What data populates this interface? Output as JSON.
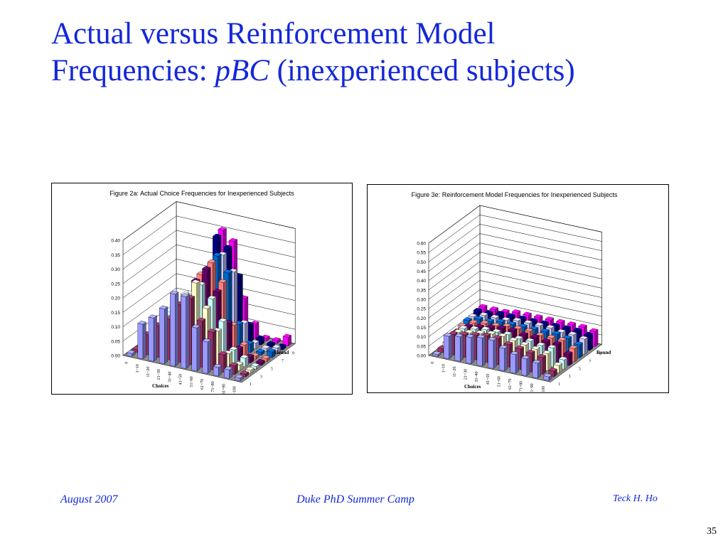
{
  "slide": {
    "title_line1": "Actual versus Reinforcement Model",
    "title_line2_pre": "Frequencies: ",
    "title_line2_italic": "pBC",
    "title_line2_post": " (inexperienced subjects)"
  },
  "footer": {
    "date": "August 2007",
    "center": "Duke PhD Summer Camp",
    "author": "Teck H. Ho",
    "page": "35"
  },
  "colors": {
    "title": "#1428d8",
    "series": [
      "#9999ff",
      "#993366",
      "#ffffcc",
      "#ccffff",
      "#660066",
      "#ff8080",
      "#0066cc",
      "#ccccff",
      "#000080",
      "#ff00ff"
    ]
  },
  "chart_data": [
    {
      "type": "bar",
      "style": "3d-column",
      "title": "Figure 2a: Actual Choice Frequencies for Inexperienced Subjects",
      "xlabel": "Choices",
      "zlabel": "Round",
      "categories": [
        "0",
        "1~10",
        "11~20",
        "21~30",
        "31~40",
        "41~50",
        "51~60",
        "61~70",
        "71~80",
        "81~90",
        "91~100"
      ],
      "rounds": [
        "1",
        "2",
        "3",
        "4",
        "5",
        "6",
        "7",
        "8",
        "9",
        "10"
      ],
      "round_tick_labels": [
        "1",
        "3",
        "5",
        "7",
        "9"
      ],
      "ylim": [
        0,
        0.4
      ],
      "yticks": [
        "0.00",
        "0.05",
        "0.10",
        "0.15",
        "0.20",
        "0.25",
        "0.30",
        "0.35",
        "0.40"
      ],
      "values": [
        [
          0.01,
          0.12,
          0.15,
          0.19,
          0.25,
          0.25,
          0.15,
          0.11,
          0.03,
          0.03,
          0.01
        ],
        [
          0.01,
          0.07,
          0.11,
          0.14,
          0.2,
          0.23,
          0.16,
          0.13,
          0.06,
          0.03,
          0.01
        ],
        [
          0.01,
          0.05,
          0.09,
          0.16,
          0.22,
          0.27,
          0.19,
          0.12,
          0.05,
          0.02,
          0.01
        ],
        [
          0.0,
          0.05,
          0.12,
          0.15,
          0.21,
          0.25,
          0.21,
          0.14,
          0.05,
          0.03,
          0.01
        ],
        [
          0.0,
          0.04,
          0.09,
          0.13,
          0.24,
          0.29,
          0.22,
          0.12,
          0.04,
          0.02,
          0.01
        ],
        [
          0.0,
          0.03,
          0.07,
          0.15,
          0.25,
          0.3,
          0.24,
          0.1,
          0.04,
          0.01,
          0.01
        ],
        [
          0.0,
          0.02,
          0.06,
          0.13,
          0.24,
          0.31,
          0.26,
          0.09,
          0.03,
          0.01,
          0.02
        ],
        [
          0.0,
          0.02,
          0.05,
          0.12,
          0.26,
          0.3,
          0.25,
          0.08,
          0.02,
          0.01,
          0.02
        ],
        [
          0.0,
          0.01,
          0.04,
          0.1,
          0.34,
          0.31,
          0.22,
          0.06,
          0.02,
          0.01,
          0.01
        ],
        [
          0.0,
          0.01,
          0.02,
          0.09,
          0.35,
          0.32,
          0.13,
          0.05,
          0.01,
          0.01,
          0.03
        ]
      ]
    },
    {
      "type": "bar",
      "style": "3d-column",
      "title": "Figure 3e: Reinforcement Model Frequencies for Inexperienced Subjects",
      "xlabel": "Choices",
      "zlabel": "Round",
      "categories": [
        "0",
        "1~10",
        "11~20",
        "21~30",
        "31~40",
        "41~50",
        "51~60",
        "61~70",
        "71~80",
        "81~90",
        "91~100"
      ],
      "rounds": [
        "1",
        "2",
        "3",
        "4",
        "5",
        "6",
        "7",
        "8",
        "9",
        "10"
      ],
      "round_tick_labels": [
        "1",
        "3",
        "5",
        "7",
        "9"
      ],
      "ylim": [
        0,
        0.6
      ],
      "yticks": [
        "0.00",
        "0.05",
        "0.10",
        "0.15",
        "0.20",
        "0.25",
        "0.30",
        "0.35",
        "0.40",
        "0.45",
        "0.50",
        "0.55",
        "0.60"
      ],
      "values": [
        [
          0.01,
          0.12,
          0.13,
          0.14,
          0.15,
          0.15,
          0.12,
          0.1,
          0.09,
          0.08,
          0.02
        ],
        [
          0.02,
          0.11,
          0.12,
          0.13,
          0.14,
          0.14,
          0.12,
          0.11,
          0.1,
          0.09,
          0.03
        ],
        [
          0.03,
          0.1,
          0.11,
          0.12,
          0.13,
          0.13,
          0.12,
          0.11,
          0.1,
          0.09,
          0.04
        ],
        [
          0.04,
          0.1,
          0.11,
          0.12,
          0.12,
          0.12,
          0.11,
          0.11,
          0.1,
          0.1,
          0.05
        ],
        [
          0.05,
          0.09,
          0.1,
          0.11,
          0.12,
          0.12,
          0.11,
          0.11,
          0.1,
          0.1,
          0.06
        ],
        [
          0.06,
          0.09,
          0.1,
          0.1,
          0.11,
          0.11,
          0.11,
          0.1,
          0.1,
          0.1,
          0.07
        ],
        [
          0.07,
          0.09,
          0.09,
          0.1,
          0.1,
          0.1,
          0.1,
          0.1,
          0.1,
          0.09,
          0.07
        ],
        [
          0.07,
          0.09,
          0.09,
          0.09,
          0.1,
          0.1,
          0.1,
          0.1,
          0.09,
          0.09,
          0.08
        ],
        [
          0.08,
          0.08,
          0.09,
          0.09,
          0.09,
          0.09,
          0.09,
          0.09,
          0.09,
          0.09,
          0.08
        ],
        [
          0.08,
          0.08,
          0.08,
          0.09,
          0.09,
          0.09,
          0.09,
          0.09,
          0.09,
          0.09,
          0.08
        ]
      ]
    }
  ]
}
